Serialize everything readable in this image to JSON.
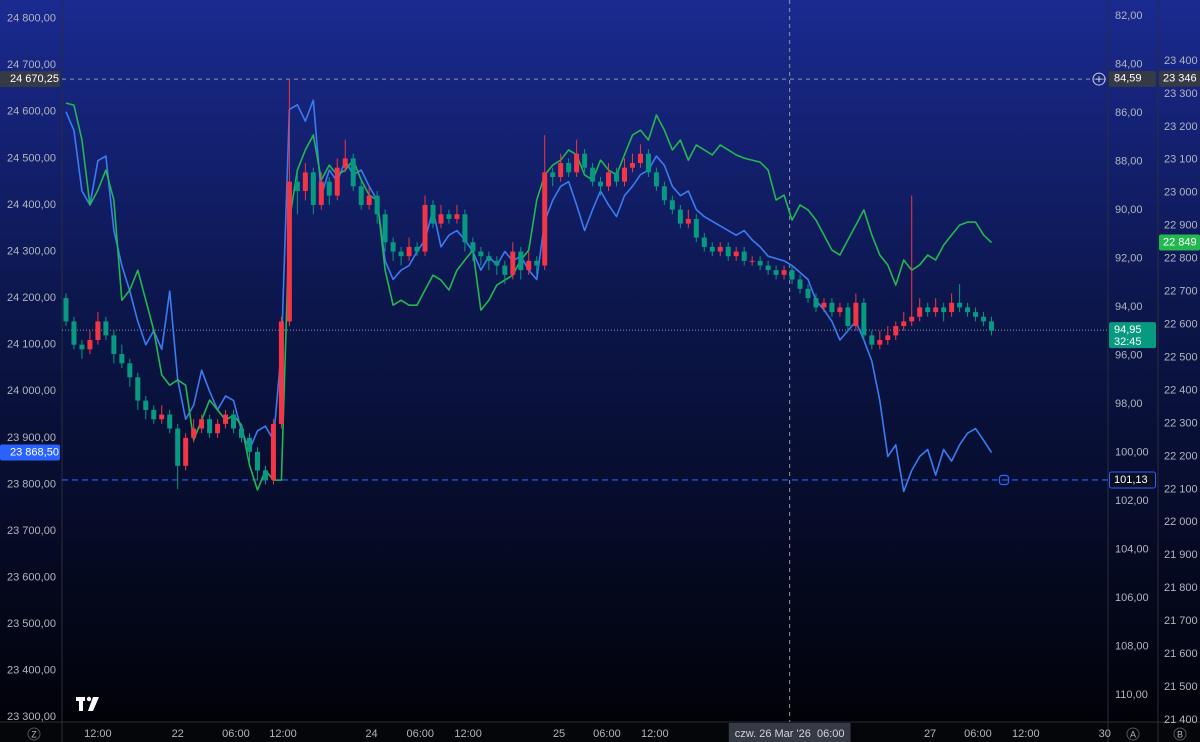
{
  "chart_data": {
    "type": "candlestick",
    "xlim": [
      -0.5,
      130.6
    ],
    "xticks": [
      {
        "value": 4.0,
        "label": "12:00"
      },
      {
        "value": 14.0,
        "label": "22"
      },
      {
        "value": 21.3,
        "label": "06:00"
      },
      {
        "value": 27.2,
        "label": "12:00"
      },
      {
        "value": 38.3,
        "label": "24"
      },
      {
        "value": 44.4,
        "label": "06:00"
      },
      {
        "value": 50.4,
        "label": "12:00"
      },
      {
        "value": 61.8,
        "label": "25"
      },
      {
        "value": 67.8,
        "label": "06:00"
      },
      {
        "value": 73.8,
        "label": "12:00"
      },
      {
        "value": 108.3,
        "label": "27"
      },
      {
        "value": 114.3,
        "label": "06:00"
      },
      {
        "value": 120.3,
        "label": "12:00"
      },
      {
        "value": 130.2,
        "label": "30"
      }
    ],
    "ylim": [
      23290,
      24840
    ],
    "yticks": [
      {
        "value": 24800,
        "label": "24 800,00"
      },
      {
        "value": 24700,
        "label": "24 700,00"
      },
      {
        "value": 24600,
        "label": "24 600,00"
      },
      {
        "value": 24500,
        "label": "24 500,00"
      },
      {
        "value": 24400,
        "label": "24 400,00"
      },
      {
        "value": 24300,
        "label": "24 300,00"
      },
      {
        "value": 24200,
        "label": "24 200,00"
      },
      {
        "value": 24100,
        "label": "24 100,00"
      },
      {
        "value": 24000,
        "label": "24 000,00"
      },
      {
        "value": 23900,
        "label": "23 900,00"
      },
      {
        "value": 23800,
        "label": "23 800,00"
      },
      {
        "value": 23700,
        "label": "23 700,00"
      },
      {
        "value": 23600,
        "label": "23 600,00"
      },
      {
        "value": 23500,
        "label": "23 500,00"
      },
      {
        "value": 23400,
        "label": "23 400,00"
      },
      {
        "value": 23300,
        "label": "23 300,00"
      }
    ],
    "y2lim": [
      111.11,
      81.34
    ],
    "y2ticks": [
      {
        "value": 82,
        "label": "82,00"
      },
      {
        "value": 84,
        "label": "84,00"
      },
      {
        "value": 86,
        "label": "86,00"
      },
      {
        "value": 88,
        "label": "88,00"
      },
      {
        "value": 90,
        "label": "90,00"
      },
      {
        "value": 92,
        "label": "92,00"
      },
      {
        "value": 94,
        "label": "94,00"
      },
      {
        "value": 96,
        "label": "96,00"
      },
      {
        "value": 98,
        "label": "98,00"
      },
      {
        "value": 100,
        "label": "100,00"
      },
      {
        "value": 102,
        "label": "102,00"
      },
      {
        "value": 104,
        "label": "104,00"
      },
      {
        "value": 106,
        "label": "106,00"
      },
      {
        "value": 108,
        "label": "108,00"
      },
      {
        "value": 110,
        "label": "110,00"
      }
    ],
    "y3lim": [
      21394,
      23585
    ],
    "y3ticks": [
      {
        "value": 23400,
        "label": "23 400"
      },
      {
        "value": 23300,
        "label": "23 300"
      },
      {
        "value": 23200,
        "label": "23 200"
      },
      {
        "value": 23100,
        "label": "23 100"
      },
      {
        "value": 23000,
        "label": "23 000"
      },
      {
        "value": 22900,
        "label": "22 900"
      },
      {
        "value": 22800,
        "label": "22 800"
      },
      {
        "value": 22700,
        "label": "22 700"
      },
      {
        "value": 22600,
        "label": "22 600"
      },
      {
        "value": 22500,
        "label": "22 500"
      },
      {
        "value": 22400,
        "label": "22 400"
      },
      {
        "value": 22300,
        "label": "22 300"
      },
      {
        "value": 22200,
        "label": "22 200"
      },
      {
        "value": 22100,
        "label": "22 100"
      },
      {
        "value": 22000,
        "label": "22 000"
      },
      {
        "value": 21900,
        "label": "21 900"
      },
      {
        "value": 21800,
        "label": "21 800"
      },
      {
        "value": 21700,
        "label": "21 700"
      },
      {
        "value": 21600,
        "label": "21 600"
      },
      {
        "value": 21500,
        "label": "21 500"
      },
      {
        "value": 21400,
        "label": "21 400"
      }
    ],
    "grid": false,
    "up_color": "#f23645",
    "down_color": "#089981",
    "x": [
      0,
      1,
      2,
      3,
      4,
      5,
      6,
      7,
      8,
      9,
      10,
      11,
      12,
      13,
      14,
      15,
      16,
      17,
      18,
      19,
      20,
      21,
      22,
      23,
      24,
      25,
      26,
      27,
      28,
      29,
      30,
      31,
      32,
      33,
      34,
      35,
      36,
      37,
      38,
      39,
      40,
      41,
      42,
      43,
      44,
      45,
      46,
      47,
      48,
      49,
      50,
      51,
      52,
      53,
      54,
      55,
      56,
      57,
      58,
      59,
      60,
      61,
      62,
      63,
      64,
      65,
      66,
      67,
      68,
      69,
      70,
      71,
      72,
      73,
      74,
      75,
      76,
      77,
      78,
      79,
      80,
      81,
      82,
      83,
      84,
      85,
      86,
      87,
      88,
      89,
      90,
      91,
      92,
      93,
      94,
      95,
      96,
      97,
      98,
      99,
      100,
      101,
      102,
      103,
      104,
      105,
      106,
      107,
      108,
      109,
      110,
      111,
      112,
      113,
      114,
      115,
      116
    ],
    "open": [
      24200,
      24150,
      24100,
      24090,
      24110,
      24150,
      24120,
      24080,
      24060,
      24030,
      23980,
      23960,
      23940,
      23950,
      23920,
      23840,
      23900,
      23920,
      23940,
      23910,
      23930,
      23950,
      23920,
      23900,
      23870,
      23830,
      23810,
      23930,
      24150,
      24450,
      24430,
      24470,
      24400,
      24450,
      24420,
      24480,
      24500,
      24440,
      24400,
      24420,
      24380,
      24320,
      24300,
      24290,
      24310,
      24300,
      24400,
      24360,
      24380,
      24370,
      24380,
      24320,
      24300,
      24290,
      24280,
      24270,
      24250,
      24300,
      24260,
      24280,
      24270,
      24470,
      24460,
      24490,
      24470,
      24510,
      24480,
      24450,
      24440,
      24470,
      24450,
      24480,
      24490,
      24510,
      24470,
      24440,
      24410,
      24390,
      24360,
      24370,
      24330,
      24310,
      24300,
      24310,
      24290,
      24300,
      24280,
      24280,
      24270,
      24260,
      24250,
      24260,
      24240,
      24220,
      24200,
      24180,
      24190,
      24170,
      24180,
      24140,
      24190,
      24120,
      24100,
      24110,
      24120,
      24140,
      24150,
      24160,
      24180,
      24170,
      24180,
      24170,
      24190,
      24180,
      24170,
      24160,
      24150
    ],
    "high": [
      24210,
      24160,
      24110,
      24130,
      24170,
      24160,
      24130,
      24100,
      24070,
      24040,
      23990,
      23970,
      23970,
      23960,
      23930,
      23910,
      23940,
      23950,
      23950,
      23940,
      23960,
      23960,
      23930,
      23910,
      23880,
      23840,
      23940,
      24160,
      24670,
      24470,
      24490,
      24480,
      24470,
      24460,
      24500,
      24540,
      24510,
      24450,
      24440,
      24430,
      24390,
      24330,
      24310,
      24330,
      24320,
      24420,
      24410,
      24400,
      24390,
      24400,
      24390,
      24330,
      24310,
      24300,
      24290,
      24280,
      24320,
      24310,
      24300,
      24290,
      24550,
      24480,
      24510,
      24500,
      24540,
      24520,
      24490,
      24460,
      24490,
      24480,
      24500,
      24510,
      24530,
      24520,
      24480,
      24450,
      24420,
      24400,
      24390,
      24380,
      24340,
      24320,
      24320,
      24320,
      24310,
      24310,
      24290,
      24290,
      24280,
      24270,
      24270,
      24270,
      24250,
      24230,
      24210,
      24200,
      24200,
      24190,
      24190,
      24210,
      24200,
      24130,
      24130,
      24140,
      24150,
      24170,
      24420,
      24200,
      24190,
      24200,
      24190,
      24210,
      24230,
      24190,
      24180,
      24170,
      24160
    ],
    "low": [
      24140,
      24090,
      24070,
      24080,
      24100,
      24110,
      24060,
      24050,
      24010,
      23960,
      23940,
      23930,
      23930,
      23910,
      23790,
      23830,
      23890,
      23910,
      23900,
      23900,
      23920,
      23910,
      23890,
      23850,
      23810,
      23800,
      23800,
      23920,
      24140,
      24380,
      24410,
      24380,
      24390,
      24400,
      24410,
      24470,
      24430,
      24390,
      24390,
      24360,
      24300,
      24280,
      24270,
      24280,
      24290,
      24290,
      24350,
      24350,
      24360,
      24360,
      24300,
      24280,
      24270,
      24260,
      24250,
      24230,
      24240,
      24240,
      24250,
      24250,
      24260,
      24440,
      24450,
      24460,
      24460,
      24470,
      24440,
      24420,
      24430,
      24440,
      24440,
      24470,
      24480,
      24460,
      24430,
      24400,
      24380,
      24350,
      24350,
      24320,
      24300,
      24290,
      24290,
      24280,
      24280,
      24270,
      24270,
      24260,
      24250,
      24240,
      24240,
      24230,
      24210,
      24190,
      24170,
      24170,
      24160,
      24160,
      24130,
      24130,
      24110,
      24090,
      24090,
      24100,
      24110,
      24130,
      24140,
      24150,
      24160,
      24160,
      24150,
      24160,
      24170,
      24160,
      24150,
      24140,
      24120
    ],
    "close": [
      24150,
      24100,
      24090,
      24110,
      24150,
      24120,
      24080,
      24060,
      24030,
      23980,
      23960,
      23940,
      23950,
      23920,
      23840,
      23900,
      23920,
      23940,
      23910,
      23930,
      23950,
      23920,
      23900,
      23870,
      23830,
      23810,
      23930,
      24150,
      24450,
      24430,
      24470,
      24400,
      24450,
      24420,
      24480,
      24500,
      24440,
      24400,
      24420,
      24380,
      24320,
      24300,
      24290,
      24310,
      24300,
      24400,
      24360,
      24380,
      24370,
      24380,
      24320,
      24300,
      24290,
      24280,
      24270,
      24250,
      24300,
      24260,
      24280,
      24270,
      24470,
      24460,
      24490,
      24470,
      24510,
      24480,
      24450,
      24440,
      24470,
      24450,
      24480,
      24490,
      24510,
      24470,
      24440,
      24410,
      24390,
      24360,
      24370,
      24330,
      24310,
      24300,
      24310,
      24290,
      24300,
      24280,
      24280,
      24270,
      24260,
      24250,
      24260,
      24240,
      24220,
      24200,
      24180,
      24190,
      24170,
      24180,
      24140,
      24190,
      24120,
      24100,
      24110,
      24120,
      24140,
      24150,
      24160,
      24180,
      24170,
      24180,
      24170,
      24190,
      24180,
      24170,
      24160,
      24150,
      24130
    ],
    "series": [
      {
        "color": "#3b7bf2",
        "axis": "y",
        "values": [
          24600,
          24560,
          24430,
          24400,
          24495,
          24505,
          24345,
          24270,
          24215,
          24150,
          24100,
          24130,
          24090,
          24215,
          24025,
          23940,
          23970,
          24045,
          24000,
          23960,
          23990,
          23980,
          23915,
          23875,
          23915,
          23925,
          23895,
          24090,
          24605,
          24615,
          24580,
          24625,
          24420,
          24475,
          24450,
          24495,
          24465,
          24475,
          24440,
          24410,
          24280,
          24240,
          24260,
          24270,
          24300,
          24325,
          24390,
          24310,
          24335,
          24345,
          24325,
          24300,
          24260,
          24290,
          24270,
          24300,
          24280,
          24290,
          24260,
          24240,
          24365,
          24410,
          24440,
          24450,
          24400,
          24345,
          24390,
          24430,
          24400,
          24375,
          24420,
          24440,
          24465,
          24475,
          24505,
          24485,
          24440,
          24420,
          24430,
          24390,
          24375,
          24365,
          24355,
          24345,
          24335,
          24345,
          24325,
          24310,
          24290,
          24285,
          24280,
          24270,
          24255,
          24240,
          24195,
          24175,
          24150,
          24110,
          24130,
          24150,
          24110,
          24065,
          23980,
          23860,
          23885,
          23785,
          23830,
          23860,
          23875,
          23820,
          23875,
          23850,
          23885,
          23910,
          23920,
          23895,
          23868.5
        ]
      },
      {
        "color": "#22b84f",
        "axis": "y3",
        "values": [
          23272,
          23266,
          23160,
          22963,
          23008,
          23069,
          22978,
          22674,
          22705,
          22765,
          22674,
          22583,
          22447,
          22416,
          22432,
          22416,
          22250,
          22310,
          22371,
          22341,
          22310,
          22325,
          22295,
          22174,
          22098,
          22158,
          22128,
          22128,
          22917,
          23069,
          23130,
          23175,
          23039,
          23084,
          23054,
          23069,
          23099,
          23039,
          22993,
          22978,
          22765,
          22659,
          22674,
          22659,
          22659,
          22705,
          22750,
          22735,
          22705,
          22765,
          22796,
          22826,
          22644,
          22674,
          22720,
          22735,
          22750,
          22796,
          22826,
          22978,
          23054,
          23084,
          23099,
          23130,
          23115,
          23054,
          23039,
          23099,
          23069,
          23054,
          23115,
          23175,
          23190,
          23160,
          23236,
          23190,
          23130,
          23160,
          23099,
          23145,
          23130,
          23115,
          23145,
          23130,
          23115,
          23105,
          23099,
          23093,
          23069,
          22978,
          22993,
          22917,
          22963,
          22948,
          22917,
          22872,
          22826,
          22811,
          22857,
          22902,
          22948,
          22872,
          22811,
          22781,
          22720,
          22796,
          22765,
          22781,
          22811,
          22796,
          22841,
          22872,
          22902,
          22911,
          22911,
          22872,
          22849
        ]
      }
    ],
    "price_labels": [
      {
        "axis": "y",
        "value": 24670.25,
        "label": "24 670,25",
        "style": "crosshair",
        "color": "#363a45",
        "line": "crosshair"
      },
      {
        "axis": "y",
        "value": 23868.5,
        "label": "23 868,50",
        "style": "fill",
        "color": "#2962ff"
      },
      {
        "axis": "y2",
        "value": 84.59,
        "label": "84,59",
        "style": "crosshair",
        "color": "#363a45"
      },
      {
        "axis": "y2",
        "value": 94.95,
        "label": "94,95",
        "sub": "32:45",
        "style": "fill",
        "color": "#089981",
        "line": "dotted"
      },
      {
        "axis": "y2",
        "value": 101.13,
        "label": "101,13",
        "style": "outline",
        "color": "#2962ff",
        "line": "dashed"
      },
      {
        "axis": "y3",
        "value": 23346,
        "label": "23 346",
        "style": "crosshair",
        "color": "#363a45"
      },
      {
        "axis": "y3",
        "value": 22849,
        "label": "22 849",
        "style": "fill",
        "color": "#22b84f"
      }
    ],
    "crosshair": {
      "x": 90.7,
      "label": "czw. 26 Mar '26  06:00"
    }
  },
  "controls": [
    "Z",
    "A",
    "B"
  ]
}
